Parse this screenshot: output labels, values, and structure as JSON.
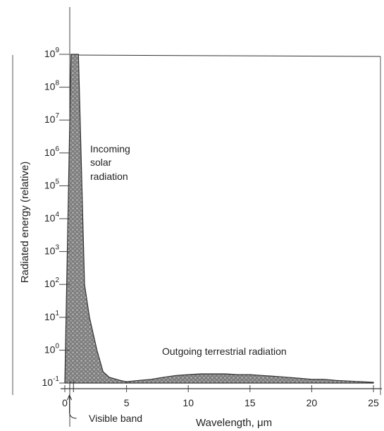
{
  "chart_data": {
    "type": "area",
    "title": "",
    "xlabel": "Wavelength, μm",
    "ylabel": "Radiated energy (relative)",
    "y_scale": "log",
    "xlim": [
      0,
      25
    ],
    "ylim": [
      0.1,
      1000000000
    ],
    "x_ticks": [
      "0",
      "5",
      "10",
      "15",
      "20",
      "25"
    ],
    "x_tick_values": [
      0,
      5,
      10,
      15,
      20,
      25
    ],
    "y_ticks": [
      {
        "base": "10",
        "exp": "-1",
        "value": 0.1
      },
      {
        "base": "10",
        "exp": "0",
        "value": 1
      },
      {
        "base": "10",
        "exp": "1",
        "value": 10
      },
      {
        "base": "10",
        "exp": "2",
        "value": 100
      },
      {
        "base": "10",
        "exp": "3",
        "value": 1000
      },
      {
        "base": "10",
        "exp": "4",
        "value": 10000
      },
      {
        "base": "10",
        "exp": "5",
        "value": 100000
      },
      {
        "base": "10",
        "exp": "6",
        "value": 1000000
      },
      {
        "base": "10",
        "exp": "7",
        "value": 10000000
      },
      {
        "base": "10",
        "exp": "8",
        "value": 100000000
      },
      {
        "base": "10",
        "exp": "9",
        "value": 1000000000
      }
    ],
    "grid": false,
    "series": [
      {
        "name": "Incoming solar radiation",
        "x": [
          0.0,
          0.5,
          0.9,
          1.1,
          1.6,
          2.0,
          2.6,
          3.1,
          3.6,
          4.5,
          5.0
        ],
        "y": [
          0.1,
          1000000000,
          1000000000,
          1000000000,
          100,
          10,
          1,
          0.22,
          0.15,
          0.12,
          0.11
        ]
      },
      {
        "name": "Outgoing terrestrial radiation",
        "x": [
          5,
          6,
          7,
          8,
          9,
          10,
          11,
          12,
          13,
          14,
          15,
          16,
          17,
          18,
          19,
          20,
          21,
          22,
          23,
          24,
          25
        ],
        "y": [
          0.11,
          0.12,
          0.13,
          0.15,
          0.17,
          0.18,
          0.19,
          0.19,
          0.19,
          0.18,
          0.18,
          0.17,
          0.16,
          0.15,
          0.14,
          0.13,
          0.13,
          0.12,
          0.115,
          0.11,
          0.105
        ]
      }
    ],
    "annotations": [
      {
        "text_lines": [
          "Incoming",
          "solar",
          "radiation"
        ]
      },
      {
        "text_lines": [
          "Outgoing terrestrial radiation"
        ]
      },
      {
        "text_lines": [
          "Visible band"
        ],
        "x_range": [
          0.4,
          0.7
        ]
      }
    ],
    "colors": {
      "fill": "#8f8f8f",
      "line": "#333333",
      "background": "#ffffff"
    }
  }
}
